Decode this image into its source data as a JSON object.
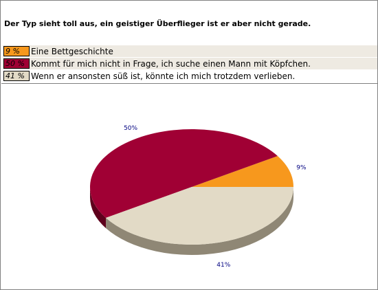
{
  "question": "Der Typ sieht toll aus, ein geistiger Überflieger ist er aber nicht gerade.",
  "answers": [
    {
      "percent_label": "9 %",
      "text": "Eine Bettgeschichte",
      "color": "#f7981d"
    },
    {
      "percent_label": "50 %",
      "text": "Kommt für mich nicht in Frage, ich suche einen Mann mit Köpfchen.",
      "color": "#a00034"
    },
    {
      "percent_label": "41 %",
      "text": "Wenn er ansonsten süß ist, könnte ich mich trotzdem verlieben.",
      "color": "#e2dac6"
    }
  ],
  "chart_data": {
    "type": "pie",
    "title": "",
    "categories": [
      "Eine Bettgeschichte",
      "Kommt für mich nicht in Frage, ich suche einen Mann mit Köpfchen.",
      "Wenn er ansonsten süß ist, könnte ich mich trotzdem verlieben."
    ],
    "values": [
      9,
      50,
      41
    ],
    "labels": [
      "9%",
      "50%",
      "41%"
    ],
    "colors": [
      "#f7981d",
      "#a00034",
      "#e2dac6"
    ],
    "side_colors": [
      "#a8620f",
      "#5e001c",
      "#8f8775"
    ],
    "style": "3d"
  }
}
